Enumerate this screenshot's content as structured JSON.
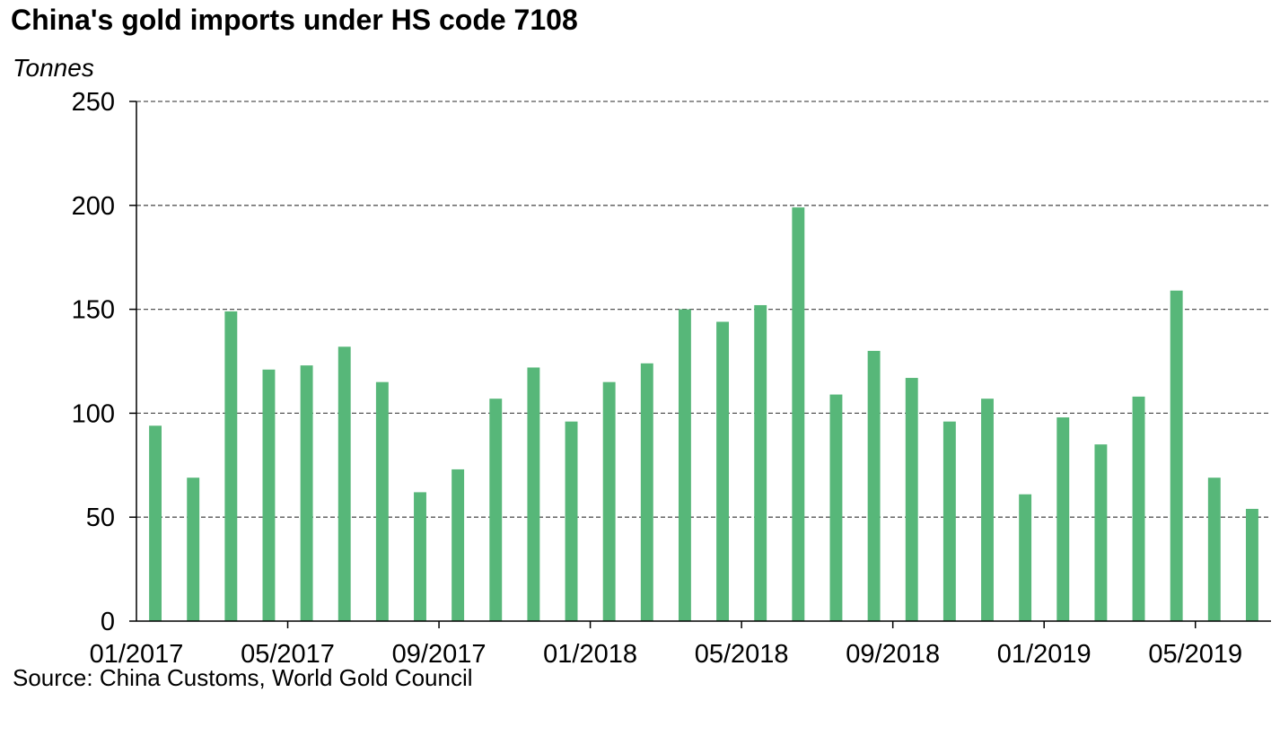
{
  "chart_data": {
    "type": "bar",
    "title": "China's gold imports under HS code 7108",
    "ylabel": "Tonnes",
    "source": "Source: China Customs, World Gold Council",
    "categories": [
      "01/2017",
      "02/2017",
      "03/2017",
      "04/2017",
      "05/2017",
      "06/2017",
      "07/2017",
      "08/2017",
      "09/2017",
      "10/2017",
      "11/2017",
      "12/2017",
      "01/2018",
      "02/2018",
      "03/2018",
      "04/2018",
      "05/2018",
      "06/2018",
      "07/2018",
      "08/2018",
      "09/2018",
      "10/2018",
      "11/2018",
      "12/2018",
      "01/2019",
      "02/2019",
      "03/2019",
      "04/2019",
      "05/2019",
      "06/2019"
    ],
    "values": [
      94,
      69,
      149,
      121,
      123,
      132,
      115,
      62,
      73,
      107,
      122,
      96,
      115,
      124,
      150,
      144,
      152,
      199,
      109,
      130,
      117,
      96,
      107,
      61,
      98,
      85,
      108,
      159,
      69,
      54
    ],
    "x_tick_labels": [
      "01/2017",
      "05/2017",
      "09/2017",
      "01/2018",
      "05/2018",
      "09/2018",
      "01/2019",
      "05/2019"
    ],
    "y_ticks": [
      0,
      50,
      100,
      150,
      200,
      250
    ],
    "ylim": [
      0,
      250
    ],
    "grid": true,
    "legend": "none",
    "bar_color": "#57b779"
  }
}
